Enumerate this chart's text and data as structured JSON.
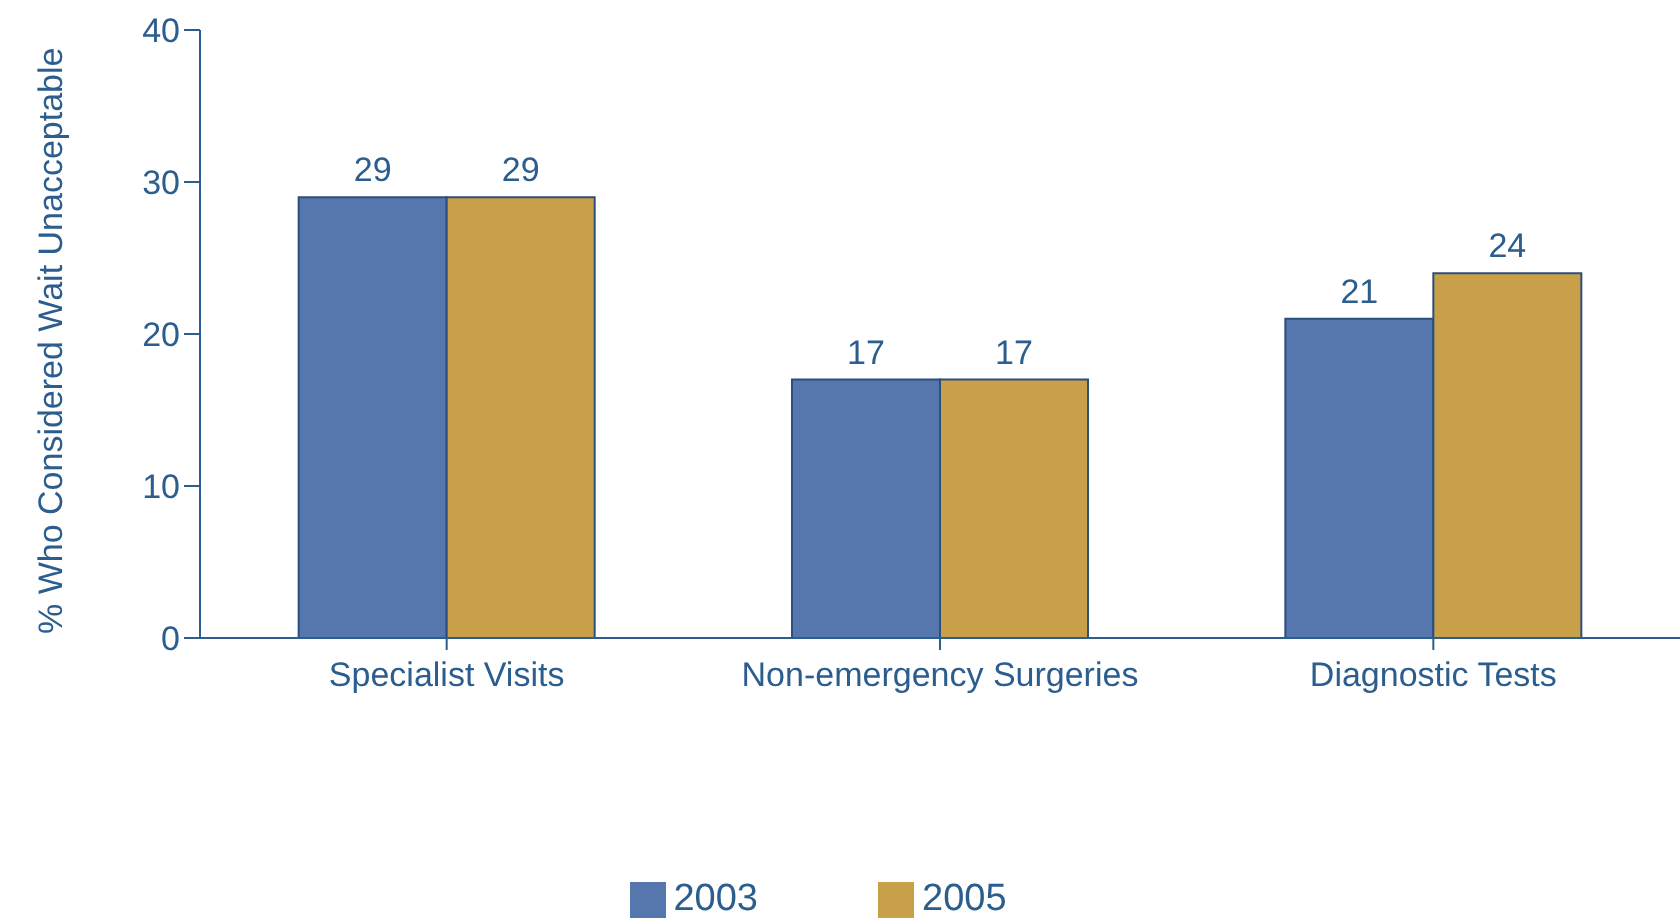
{
  "chart_data": {
    "type": "bar",
    "ylabel": "%  Who Considered Wait Unacceptable",
    "categories": [
      "Specialist Visits",
      "Non-emergency Surgeries",
      "Diagnostic Tests"
    ],
    "series": [
      {
        "name": "2003",
        "color": "#5577ae",
        "values": [
          29,
          17,
          21
        ]
      },
      {
        "name": "2005",
        "color": "#c8a04a",
        "values": [
          29,
          17,
          24
        ]
      }
    ],
    "ylim": [
      0,
      40
    ],
    "yticks": [
      0,
      10,
      20,
      30,
      40
    ],
    "grid": false,
    "legend": "bottom",
    "data_labels": true
  }
}
